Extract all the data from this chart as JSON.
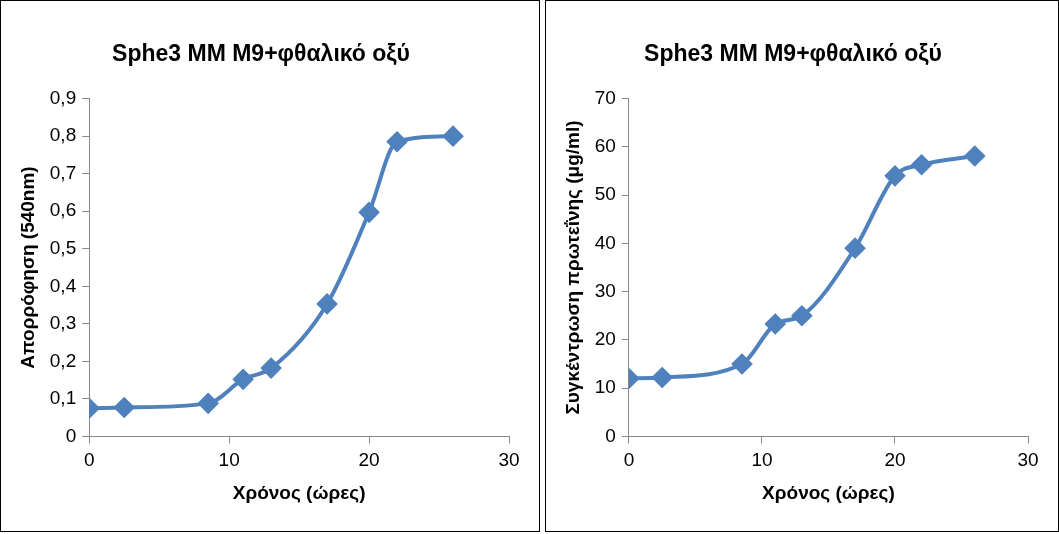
{
  "chart_data": [
    {
      "type": "line",
      "title": "Sphe3 MM M9+φθαλικό οξύ",
      "xlabel": "Χρόνος (ώρες)",
      "ylabel": "Απορρόφηση (540nm)",
      "x": [
        0,
        2.5,
        8.5,
        11,
        13,
        17,
        20,
        22,
        26
      ],
      "series": [
        {
          "color": "#4f81bd",
          "values": [
            0.075,
            0.077,
            0.088,
            0.152,
            0.182,
            0.353,
            0.597,
            0.785,
            0.8
          ]
        }
      ],
      "xlim": [
        0,
        30
      ],
      "xticks": [
        0,
        10,
        20,
        30
      ],
      "ylim": [
        0,
        0.9
      ],
      "yticks": [
        {
          "value": 0,
          "label": "0"
        },
        {
          "value": 0.1,
          "label": "0,1"
        },
        {
          "value": 0.2,
          "label": "0,2"
        },
        {
          "value": 0.3,
          "label": "0,3"
        },
        {
          "value": 0.4,
          "label": "0,4"
        },
        {
          "value": 0.5,
          "label": "0,5"
        },
        {
          "value": 0.6,
          "label": "0,6"
        },
        {
          "value": 0.7,
          "label": "0,7"
        },
        {
          "value": 0.8,
          "label": "0,8"
        },
        {
          "value": 0.9,
          "label": "0,9"
        }
      ],
      "grid": false,
      "legend": false,
      "marker": "diamond",
      "line_style": "solid"
    },
    {
      "type": "line",
      "title": "Sphe3 MM M9+φθαλικό οξύ",
      "xlabel": "Χρόνος (ώρες)",
      "ylabel": "Συγκέντρωση πρωτεΐνης (μg/ml)",
      "x": [
        0,
        2.5,
        8.5,
        11,
        13,
        17,
        20,
        22,
        26
      ],
      "series": [
        {
          "color": "#4f81bd",
          "values": [
            12,
            12.2,
            15,
            23.3,
            25,
            39,
            54,
            56.3,
            58.1
          ]
        }
      ],
      "xlim": [
        0,
        30
      ],
      "xticks": [
        0,
        10,
        20,
        30
      ],
      "ylim": [
        0,
        70
      ],
      "yticks": [
        0,
        10,
        20,
        30,
        40,
        50,
        60,
        70
      ],
      "grid": false,
      "legend": false,
      "marker": "diamond",
      "line_style": "solid"
    }
  ]
}
